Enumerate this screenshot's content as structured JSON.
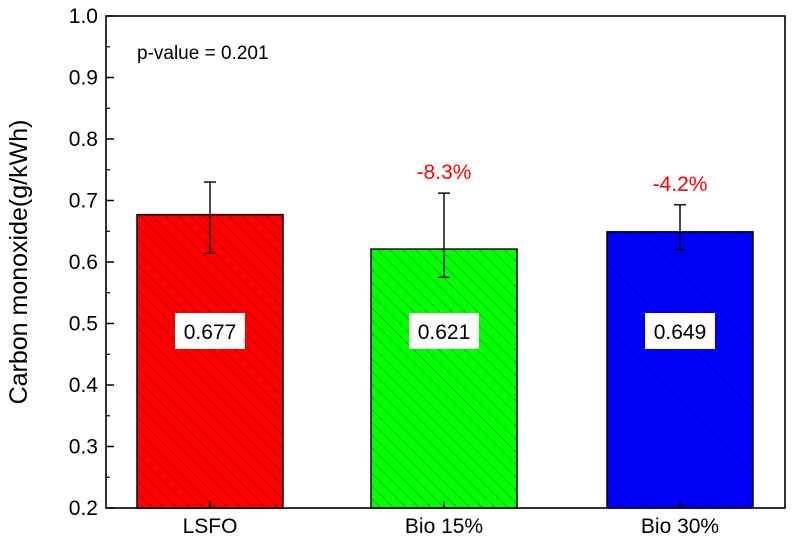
{
  "chart_data": {
    "type": "bar",
    "ylabel": "Carbon monoxide(g/kWh)",
    "ylim": [
      0.2,
      1.0
    ],
    "yticks": [
      "0.2",
      "0.3",
      "0.4",
      "0.5",
      "0.6",
      "0.7",
      "0.8",
      "0.9",
      "1.0"
    ],
    "categories": [
      "LSFO",
      "Bio 15%",
      "Bio 30%"
    ],
    "values": [
      0.677,
      0.621,
      0.649
    ],
    "value_labels": [
      "0.677",
      "0.621",
      "0.649"
    ],
    "error_high": [
      0.73,
      0.712,
      0.693
    ],
    "error_low": [
      0.614,
      0.575,
      0.62
    ],
    "bar_colors": [
      "#ff0000",
      "#00ff00",
      "#0000ff"
    ],
    "pct_changes": [
      "",
      "-8.3%",
      "-4.2%"
    ],
    "pct_color": "#ff0000",
    "hatch": "diagonal",
    "annotation": "p-value = 0.201",
    "grid": false
  }
}
